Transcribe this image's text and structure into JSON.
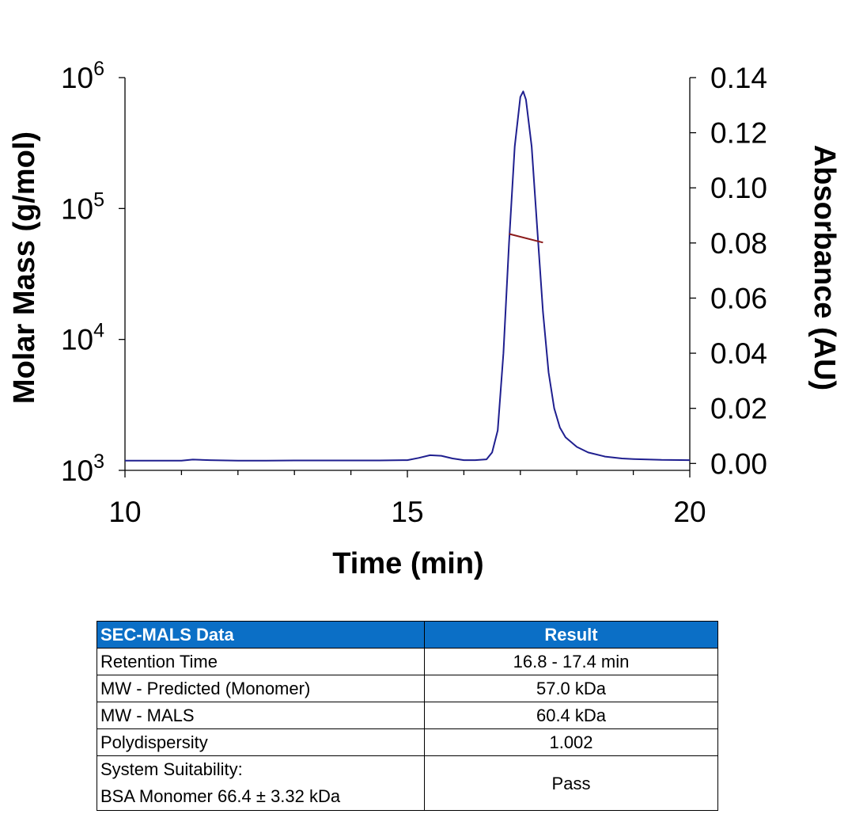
{
  "chart_data": {
    "type": "line",
    "xlabel": "Time (min)",
    "ylabel_left": "Molar Mass (g/mol)",
    "ylabel_right": "Absorbance (AU)",
    "xlim": [
      10,
      20
    ],
    "x_ticks": [
      "10",
      "15",
      "20"
    ],
    "ylim_left": [
      1000,
      1000000
    ],
    "y_scale_left": "log",
    "y_ticks_left": [
      {
        "base": "10",
        "exp": "3",
        "value": 1000
      },
      {
        "base": "10",
        "exp": "4",
        "value": 10000
      },
      {
        "base": "10",
        "exp": "5",
        "value": 100000
      },
      {
        "base": "10",
        "exp": "6",
        "value": 1000000
      }
    ],
    "ylim_right": [
      -0.0025,
      0.14
    ],
    "y_ticks_right": [
      "0.00",
      "0.02",
      "0.04",
      "0.06",
      "0.08",
      "0.10",
      "0.12",
      "0.14"
    ],
    "grid": false,
    "series": [
      {
        "axis": "right",
        "color": "#1f1f8f",
        "x": [
          10.0,
          10.5,
          11.0,
          11.2,
          11.5,
          12.0,
          12.5,
          13.0,
          13.5,
          14.0,
          14.5,
          15.0,
          15.2,
          15.4,
          15.6,
          15.8,
          16.0,
          16.2,
          16.4,
          16.5,
          16.6,
          16.7,
          16.8,
          16.9,
          17.0,
          17.05,
          17.1,
          17.2,
          17.3,
          17.4,
          17.5,
          17.6,
          17.7,
          17.8,
          18.0,
          18.2,
          18.5,
          18.8,
          19.0,
          19.5,
          20.0
        ],
        "y": [
          0.001,
          0.001,
          0.001,
          0.0014,
          0.0012,
          0.001,
          0.001,
          0.0011,
          0.0011,
          0.0011,
          0.0011,
          0.0012,
          0.002,
          0.003,
          0.0028,
          0.0018,
          0.0012,
          0.0012,
          0.0015,
          0.004,
          0.012,
          0.04,
          0.08,
          0.115,
          0.133,
          0.135,
          0.132,
          0.115,
          0.085,
          0.055,
          0.033,
          0.02,
          0.013,
          0.0095,
          0.006,
          0.004,
          0.0025,
          0.0018,
          0.0016,
          0.0013,
          0.0012
        ]
      },
      {
        "axis": "left",
        "color": "#8b1a1a",
        "x": [
          16.8,
          17.4
        ],
        "y": [
          64000,
          55000
        ]
      }
    ]
  },
  "table": {
    "headers": [
      "SEC-MALS Data",
      "Result"
    ],
    "rows": [
      {
        "label": "Retention Time",
        "value": "16.8 - 17.4 min"
      },
      {
        "label": "MW - Predicted (Monomer)",
        "value": "57.0 kDa"
      },
      {
        "label": "MW - MALS",
        "value": "60.4 kDa"
      },
      {
        "label": "Polydispersity",
        "value": "1.002"
      }
    ],
    "last_row": {
      "label_line1": "System Suitability:",
      "label_line2": "BSA Monomer 66.4 ± 3.32 kDa",
      "value": "Pass"
    }
  }
}
